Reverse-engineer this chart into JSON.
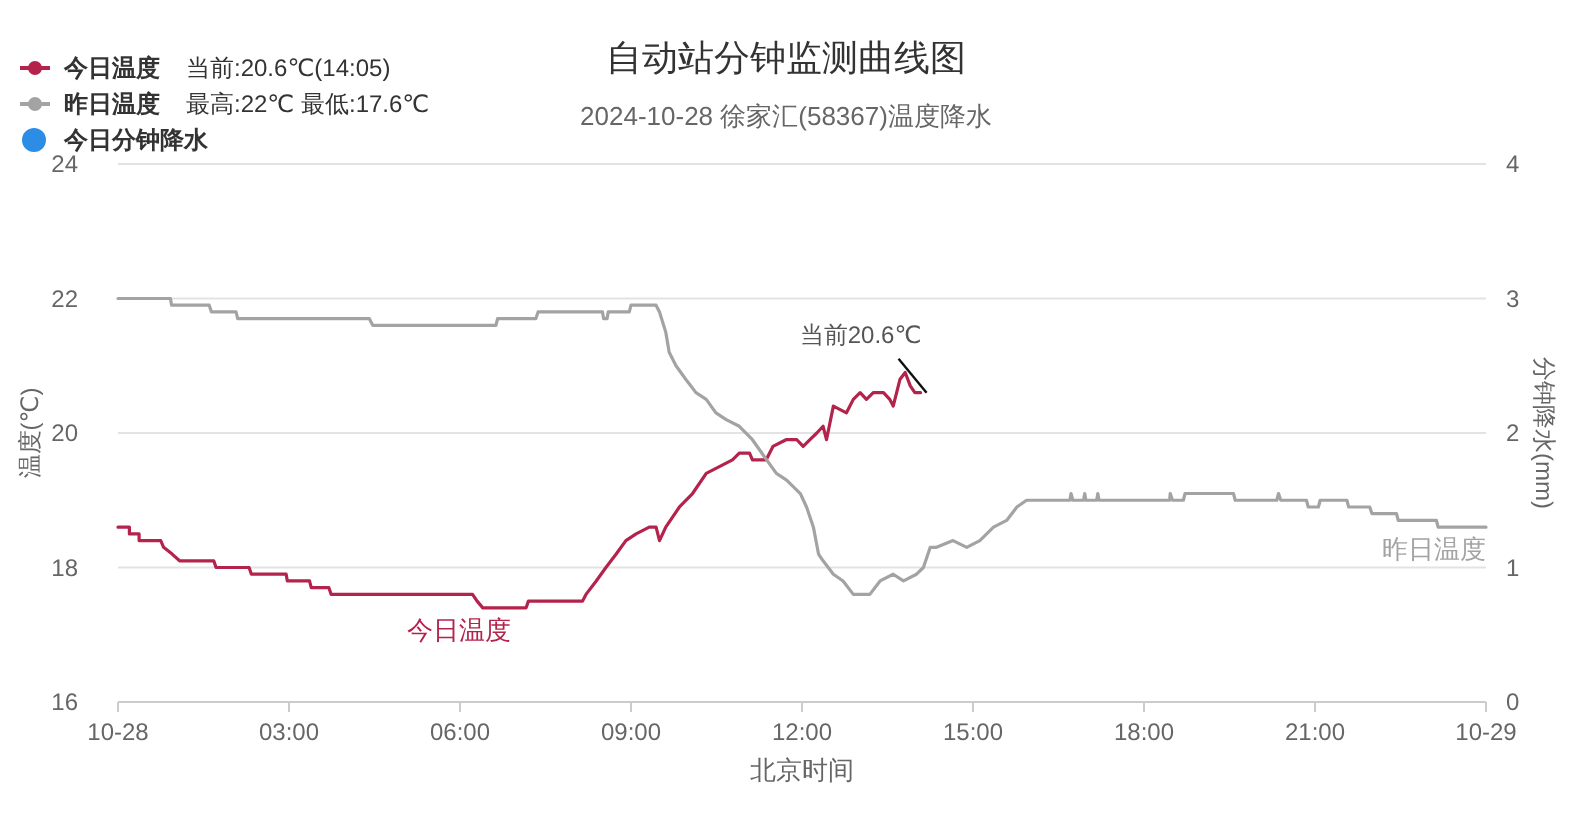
{
  "chart_data": {
    "type": "line",
    "title": "自动站分钟监测曲线图",
    "subtitle": "2024-10-28 徐家汇(58367)温度降水",
    "xlabel": "北京时间",
    "ylabel": "温度(℃)",
    "y2label": "分钟降水(mm)",
    "xlim": [
      0,
      24
    ],
    "xticks": [
      {
        "value": 0,
        "label": "10-28"
      },
      {
        "value": 3,
        "label": "03:00"
      },
      {
        "value": 6,
        "label": "06:00"
      },
      {
        "value": 9,
        "label": "09:00"
      },
      {
        "value": 12,
        "label": "12:00"
      },
      {
        "value": 15,
        "label": "15:00"
      },
      {
        "value": 18,
        "label": "18:00"
      },
      {
        "value": 21,
        "label": "21:00"
      },
      {
        "value": 24,
        "label": "10-29"
      }
    ],
    "ylim": [
      16,
      24
    ],
    "yticks": [
      16,
      18,
      20,
      22,
      24
    ],
    "y2lim": [
      0,
      4
    ],
    "y2ticks": [
      0,
      1,
      2,
      3,
      4
    ],
    "grid": "y",
    "legend": "top left",
    "series": [
      {
        "name": "今日温度",
        "color": "#b4234c",
        "x": [
          0,
          0.2,
          0.2,
          0.37,
          0.37,
          0.75,
          0.8,
          0.95,
          1.08,
          1.68,
          1.72,
          2.3,
          2.34,
          2.95,
          2.97,
          3.36,
          3.39,
          3.7,
          3.74,
          6.22,
          6.3,
          6.4,
          7.16,
          7.2,
          8.15,
          8.21,
          8.39,
          8.56,
          8.74,
          8.91,
          9.09,
          9.32,
          9.44,
          9.5,
          9.61,
          9.85,
          10.08,
          10.32,
          10.55,
          10.78,
          10.9,
          11.08,
          11.13,
          11.37,
          11.49,
          11.72,
          11.91,
          12.02,
          12.14,
          12.26,
          12.37,
          12.43,
          12.55,
          12.78,
          12.9,
          13.02,
          13.13,
          13.25,
          13.43,
          13.54,
          13.6,
          13.72,
          13.81,
          13.9,
          13.98,
          14.08
        ],
        "values": [
          18.6,
          18.6,
          18.5,
          18.5,
          18.4,
          18.4,
          18.3,
          18.2,
          18.1,
          18.1,
          18.0,
          18.0,
          17.9,
          17.9,
          17.8,
          17.8,
          17.7,
          17.7,
          17.6,
          17.6,
          17.5,
          17.4,
          17.4,
          17.5,
          17.5,
          17.6,
          17.8,
          18.0,
          18.2,
          18.4,
          18.5,
          18.6,
          18.6,
          18.4,
          18.6,
          18.9,
          19.1,
          19.4,
          19.5,
          19.6,
          19.7,
          19.7,
          19.6,
          19.6,
          19.8,
          19.9,
          19.9,
          19.8,
          19.9,
          20.0,
          20.1,
          19.9,
          20.4,
          20.3,
          20.5,
          20.6,
          20.5,
          20.6,
          20.6,
          20.5,
          20.4,
          20.8,
          20.9,
          20.7,
          20.6,
          20.6
        ]
      },
      {
        "name": "昨日温度",
        "color": "#a3a3a3",
        "x": [
          0,
          0.92,
          0.94,
          1.6,
          1.64,
          2.07,
          2.1,
          4.41,
          4.47,
          6.63,
          6.66,
          7.33,
          7.37,
          8.5,
          8.52,
          8.58,
          8.6,
          8.97,
          9.0,
          9.44,
          9.5,
          9.61,
          9.67,
          9.79,
          9.96,
          10.14,
          10.32,
          10.49,
          10.67,
          10.9,
          11.13,
          11.38,
          11.55,
          11.73,
          11.97,
          12.08,
          12.2,
          12.29,
          12.37,
          12.55,
          12.72,
          12.9,
          13.19,
          13.37,
          13.6,
          13.78,
          14.01,
          14.13,
          14.25,
          14.36,
          14.65,
          14.89,
          15.12,
          15.36,
          15.59,
          15.77,
          15.94,
          16.7,
          16.72,
          16.75,
          16.94,
          16.96,
          16.98,
          17.17,
          17.19,
          17.21,
          18.45,
          18.46,
          18.5,
          18.69,
          18.72,
          19.57,
          19.6,
          20.33,
          20.36,
          20.4,
          20.85,
          20.88,
          21.06,
          21.09,
          21.56,
          21.59,
          21.96,
          22.0,
          22.43,
          22.46,
          23.13,
          23.16,
          24
        ],
        "values": [
          22.0,
          22.0,
          21.9,
          21.9,
          21.8,
          21.8,
          21.7,
          21.7,
          21.6,
          21.6,
          21.7,
          21.7,
          21.8,
          21.8,
          21.7,
          21.7,
          21.8,
          21.8,
          21.9,
          21.9,
          21.8,
          21.5,
          21.2,
          21.0,
          20.8,
          20.6,
          20.5,
          20.3,
          20.2,
          20.1,
          19.9,
          19.6,
          19.4,
          19.3,
          19.1,
          18.9,
          18.6,
          18.2,
          18.1,
          17.9,
          17.8,
          17.6,
          17.6,
          17.8,
          17.9,
          17.8,
          17.9,
          18.0,
          18.3,
          18.3,
          18.4,
          18.3,
          18.4,
          18.6,
          18.7,
          18.9,
          19.0,
          19.0,
          19.1,
          19.0,
          19.0,
          19.1,
          19.0,
          19.0,
          19.1,
          19.0,
          19.0,
          19.1,
          19.0,
          19.0,
          19.1,
          19.1,
          19.0,
          19.0,
          19.1,
          19.0,
          19.0,
          18.9,
          18.9,
          19.0,
          19.0,
          18.9,
          18.9,
          18.8,
          18.8,
          18.7,
          18.7,
          18.6,
          18.6
        ]
      },
      {
        "name": "今日分钟降水",
        "type": "scatter",
        "color": "#2b8de6"
      }
    ],
    "annotations": [
      "当前:20.6℃(14:05)",
      "最高:22℃ 最低:17.6℃",
      {
        "text": "当前20.6℃",
        "x": 14.08,
        "y": 20.6
      }
    ]
  }
}
